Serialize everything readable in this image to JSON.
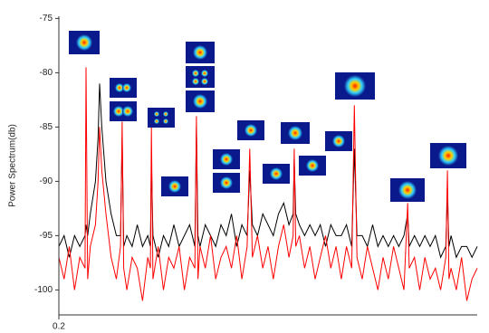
{
  "chart_data": {
    "type": "line",
    "y_label": "Power Spectrum(db)",
    "x": [
      0.2,
      0.21,
      0.22,
      0.23,
      0.24,
      0.25,
      0.252,
      0.255,
      0.26,
      0.27,
      0.275,
      0.278,
      0.282,
      0.29,
      0.3,
      0.31,
      0.318,
      0.321,
      0.324,
      0.33,
      0.34,
      0.35,
      0.36,
      0.37,
      0.375,
      0.377,
      0.38,
      0.39,
      0.4,
      0.41,
      0.42,
      0.43,
      0.44,
      0.45,
      0.46,
      0.463,
      0.466,
      0.47,
      0.48,
      0.49,
      0.5,
      0.51,
      0.52,
      0.53,
      0.54,
      0.55,
      0.56,
      0.565,
      0.57,
      0.58,
      0.59,
      0.6,
      0.61,
      0.62,
      0.63,
      0.64,
      0.648,
      0.65,
      0.653,
      0.66,
      0.67,
      0.68,
      0.69,
      0.7,
      0.71,
      0.72,
      0.73,
      0.74,
      0.75,
      0.76,
      0.765,
      0.77,
      0.78,
      0.79,
      0.8,
      0.81,
      0.82,
      0.83,
      0.84,
      0.85,
      0.86,
      0.867,
      0.87,
      0.88,
      0.89,
      0.9,
      0.91,
      0.92,
      0.93,
      0.94,
      0.943,
      0.946,
      0.95,
      0.96,
      0.97,
      0.98,
      0.99,
      1.0
    ],
    "series": [
      {
        "color": "#000000",
        "values": [
          -96,
          -95,
          -97,
          -95,
          -96,
          -95,
          -94,
          -95,
          -93,
          -90,
          -86,
          -81,
          -85,
          -90,
          -93,
          -95,
          -95,
          -86,
          -96,
          -95,
          -96,
          -94,
          -96,
          -95,
          -96,
          -88,
          -95,
          -97,
          -95,
          -96,
          -94,
          -96,
          -95,
          -94,
          -96,
          -85,
          -95,
          -96,
          -94,
          -95,
          -96,
          -94,
          -95,
          -93,
          -96,
          -94,
          -95,
          -89,
          -94,
          -95,
          -93,
          -94,
          -95,
          -93,
          -92,
          -94,
          -93,
          -88,
          -93,
          -94,
          -95,
          -94,
          -95,
          -94,
          -96,
          -94,
          -95,
          -95,
          -94,
          -96,
          -87,
          -95,
          -95,
          -96,
          -94,
          -96,
          -95,
          -96,
          -95,
          -96,
          -95,
          -93,
          -96,
          -95,
          -96,
          -95,
          -96,
          -95,
          -97,
          -96,
          -91,
          -96,
          -95,
          -97,
          -96,
          -96,
          -97,
          -96
        ]
      },
      {
        "color": "#ff0000",
        "values": [
          -97,
          -99,
          -96,
          -100,
          -97,
          -98,
          -79.5,
          -99,
          -96,
          -94,
          -90,
          -85,
          -89,
          -93,
          -97,
          -99,
          -96,
          -84.5,
          -98,
          -100,
          -97,
          -98,
          -101,
          -97,
          -98,
          -85,
          -99,
          -96,
          -100,
          -97,
          -98,
          -96,
          -100,
          -97,
          -98,
          -84,
          -99,
          -96,
          -98,
          -95,
          -99,
          -97,
          -96,
          -98,
          -95,
          -99,
          -96,
          -87,
          -97,
          -95,
          -98,
          -96,
          -99,
          -96,
          -94,
          -97,
          -95,
          -87,
          -96,
          -95,
          -98,
          -96,
          -99,
          -97,
          -95,
          -98,
          -96,
          -99,
          -96,
          -98,
          -83,
          -97,
          -99,
          -96,
          -98,
          -100,
          -97,
          -99,
          -96,
          -98,
          -100,
          -92,
          -98,
          -97,
          -100,
          -97,
          -99,
          -98,
          -100,
          -97,
          -89,
          -99,
          -98,
          -100,
          -97,
          -101,
          -99,
          -98
        ]
      }
    ],
    "xlim": [
      0.2,
      1.0
    ],
    "xticks": [
      0.2
    ],
    "ylim": [
      -102.3,
      -74.8
    ],
    "yticks": [
      -75,
      -80,
      -85,
      -90,
      -95,
      -100
    ]
  }
}
